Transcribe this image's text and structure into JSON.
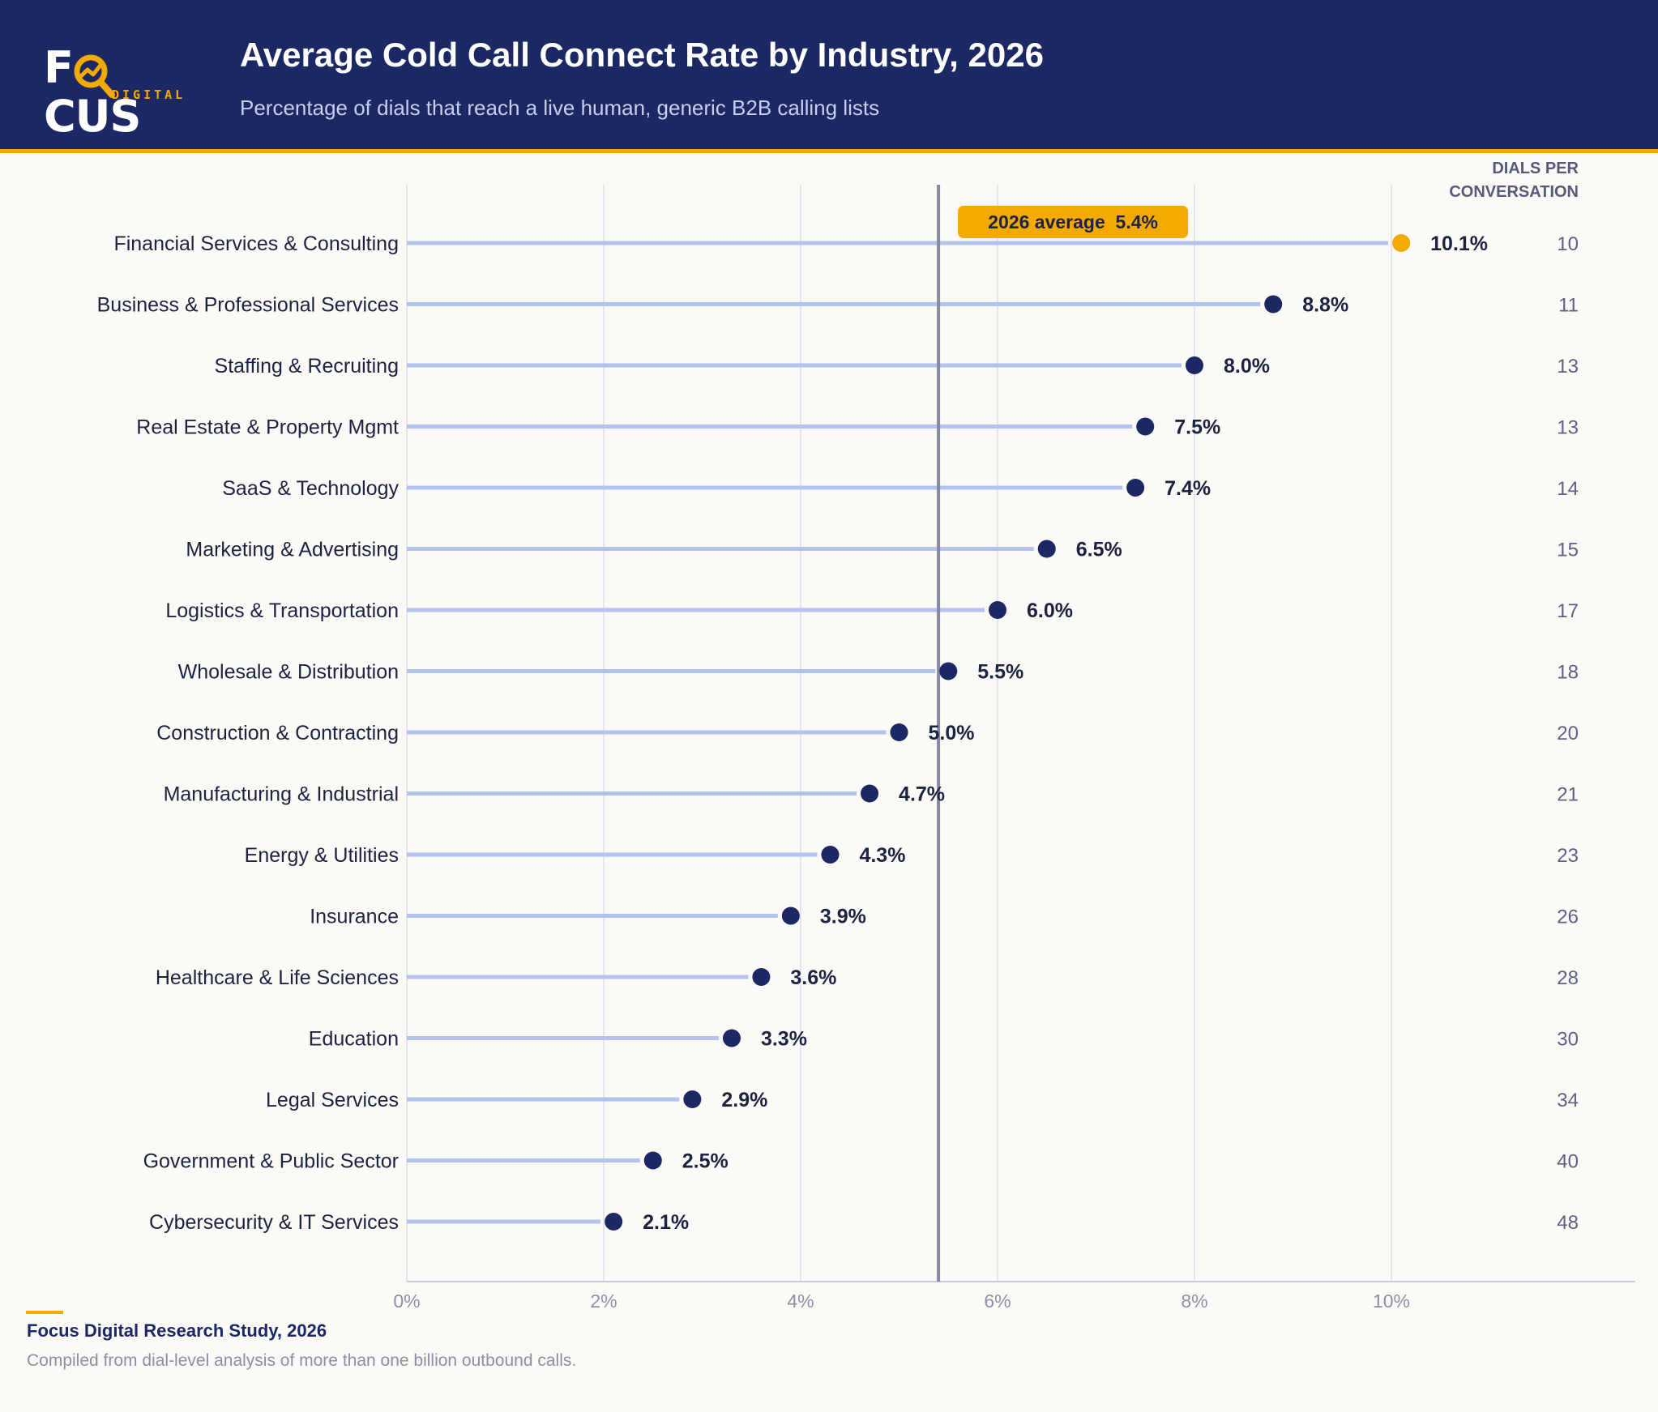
{
  "header": {
    "logo_text": "FOCUS",
    "logo_subtext": "DIGITAL",
    "title": "Average Cold Call Connect Rate by Industry, 2026",
    "subtitle": "Percentage of dials that reach a live human, generic B2B calling lists"
  },
  "chart_data": {
    "type": "lollipop",
    "title": "Average Cold Call Connect Rate by Industry, 2026",
    "subtitle": "Percentage of dials that reach a live human, generic B2B calling lists",
    "xlabel": "",
    "ylabel": "",
    "xlim": [
      0,
      12
    ],
    "x_ticks": [
      0,
      2,
      4,
      6,
      8,
      10
    ],
    "x_tick_labels": [
      "0%",
      "2%",
      "4%",
      "6%",
      "8%",
      "10%"
    ],
    "grid": "vertical",
    "average": {
      "label": "2026 average  5.4%",
      "value": 5.4
    },
    "side_column_header": [
      "DIALS PER",
      "CONVERSATION"
    ],
    "categories": [
      "Financial Services & Consulting",
      "Business & Professional Services",
      "Staffing & Recruiting",
      "Real Estate & Property Mgmt",
      "SaaS & Technology",
      "Marketing & Advertising",
      "Logistics & Transportation",
      "Wholesale & Distribution",
      "Construction & Contracting",
      "Manufacturing & Industrial",
      "Energy & Utilities",
      "Insurance",
      "Healthcare & Life Sciences",
      "Education",
      "Legal Services",
      "Government & Public Sector",
      "Cybersecurity & IT Services"
    ],
    "values": [
      10.1,
      8.8,
      8.0,
      7.5,
      7.4,
      6.5,
      6.0,
      5.5,
      5.0,
      4.7,
      4.3,
      3.9,
      3.6,
      3.3,
      2.9,
      2.5,
      2.1
    ],
    "value_labels": [
      "10.1%",
      "8.8%",
      "8.0%",
      "7.5%",
      "7.4%",
      "6.5%",
      "6.0%",
      "5.5%",
      "5.0%",
      "4.7%",
      "4.3%",
      "3.9%",
      "3.6%",
      "3.3%",
      "2.9%",
      "2.5%",
      "2.1%"
    ],
    "dials_per_conversation": [
      10,
      11,
      13,
      13,
      14,
      15,
      17,
      18,
      20,
      21,
      23,
      26,
      28,
      30,
      34,
      40,
      48
    ],
    "highlight_index": 0,
    "colors": {
      "stem": "#b3c3ee",
      "dot": "#1b2863",
      "highlight": "#f2a900",
      "average_line": "#868aa0",
      "grid": "#e3e6ef",
      "axis": "#c5cbe0",
      "label_text": "#1b2340",
      "muted_text": "#8a90a8"
    }
  },
  "footer": {
    "title": "Focus Digital Research Study, 2026",
    "note": "Compiled from dial-level analysis of more than one billion outbound calls."
  }
}
